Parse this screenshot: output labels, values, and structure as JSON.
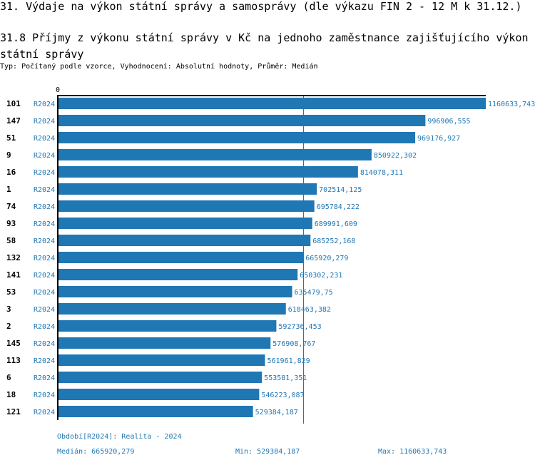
{
  "section_title": "31. Výdaje na výkon státní správy a samosprávy (dle výkazu FIN 2 - 12 M k 31.12.)",
  "chart_title": "31.8 Příjmy z výkonu státní správy v Kč na jednoho zaměstnance zajišťujícího výkon státní správy",
  "subtitle": "Typ: Počítaný podle vzorce, Vyhodnocení: Absolutní hodnoty, Průměr: Medián",
  "footer": {
    "period": "Období[R2024]: Realita - 2024",
    "median": "Medián: 665920,279",
    "min": "Min: 529384,187",
    "max": "Max: 1160633,743"
  },
  "colors": {
    "bar": "#1f77b4",
    "label": "#1f77b4",
    "axis": "#000000"
  },
  "chart_data": {
    "type": "bar",
    "orientation": "horizontal",
    "axis_zero_label": "0",
    "xlim": [
      0,
      1160633.743
    ],
    "median": 665920.279,
    "categories": [
      "101",
      "147",
      "51",
      "9",
      "16",
      "1",
      "74",
      "93",
      "58",
      "132",
      "141",
      "53",
      "3",
      "2",
      "145",
      "113",
      "6",
      "18",
      "121"
    ],
    "series_label": "R2024",
    "values": [
      1160633.743,
      996906.555,
      969176.927,
      850922.302,
      814078.311,
      702514.125,
      695784.222,
      689991.609,
      685252.168,
      665920.279,
      650302.231,
      635479.75,
      618463.382,
      592736.453,
      576908.767,
      561961.829,
      553581.351,
      546223.087,
      529384.187
    ],
    "value_labels": [
      "1160633,743",
      "996906,555",
      "969176,927",
      "850922,302",
      "814078,311",
      "702514,125",
      "695784,222",
      "689991,609",
      "685252,168",
      "665920,279",
      "650302,231",
      "635479,75",
      "618463,382",
      "592736,453",
      "576908,767",
      "561961,829",
      "553581,351",
      "546223,087",
      "529384,187"
    ]
  }
}
